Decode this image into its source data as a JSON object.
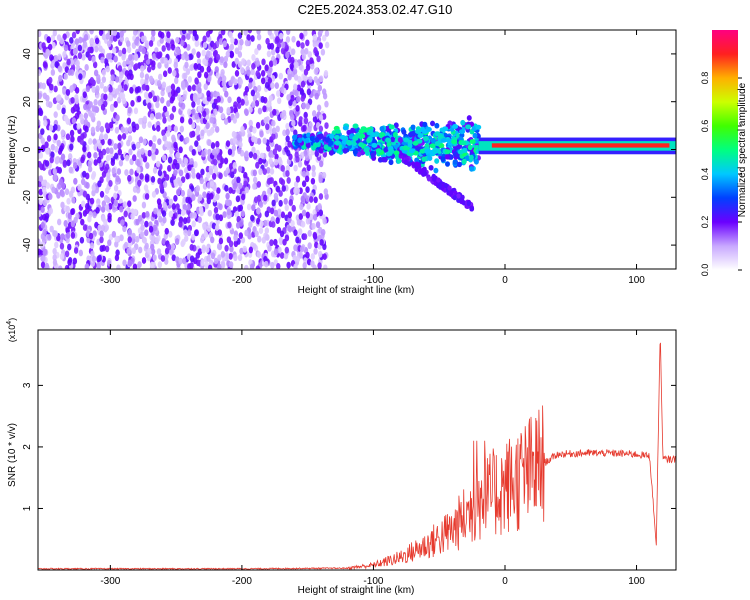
{
  "title": "C2E5.2024.353.02.47.G10",
  "chart_data": [
    {
      "type": "heatmap",
      "xlabel": "Height of straight line (km)",
      "ylabel": "Frequency (Hz)",
      "xlim": [
        -355,
        130
      ],
      "ylim": [
        -50,
        50
      ],
      "x_ticks": [
        -300,
        -200,
        -100,
        0,
        100
      ],
      "y_ticks": [
        -40,
        -20,
        0,
        20,
        40
      ],
      "colorbar": {
        "label": "Normalized spectral amplitude",
        "range": [
          0,
          1
        ],
        "ticks": [
          "0.0",
          "0.2",
          "0.4",
          "0.6",
          "0.8"
        ]
      },
      "description_points": [
        {
          "x_range": [
            -355,
            -135
          ],
          "y_range": [
            -50,
            50
          ],
          "amplitude": 0.1
        },
        {
          "x_range": [
            -160,
            -20
          ],
          "y_range": [
            -10,
            15
          ],
          "amplitude": 0.3
        },
        {
          "x_range": [
            -20,
            130
          ],
          "y_range": [
            0,
            4
          ],
          "amplitude": 0.95
        }
      ]
    },
    {
      "type": "line",
      "xlabel": "Height of straight line (km)",
      "ylabel": "SNR (10 * v/v)",
      "y_scale_note": "(x10",
      "y_scale_exp": "4",
      "y_scale_close": ")",
      "xlim": [
        -355,
        130
      ],
      "ylim": [
        0,
        3.9
      ],
      "x_ticks": [
        -300,
        -200,
        -100,
        0,
        100
      ],
      "y_ticks": [
        1,
        2,
        3
      ],
      "color": "#e63a2e",
      "x": [
        -355,
        -200,
        -120,
        -100,
        -80,
        -60,
        -40,
        -20,
        0,
        20,
        40,
        60,
        80,
        100,
        110,
        115,
        118,
        120,
        130
      ],
      "y": [
        0.02,
        0.02,
        0.03,
        0.08,
        0.2,
        0.4,
        0.65,
        1.1,
        1.35,
        1.6,
        1.88,
        1.9,
        1.9,
        1.88,
        1.85,
        0.4,
        3.9,
        1.8,
        1.8
      ]
    }
  ]
}
